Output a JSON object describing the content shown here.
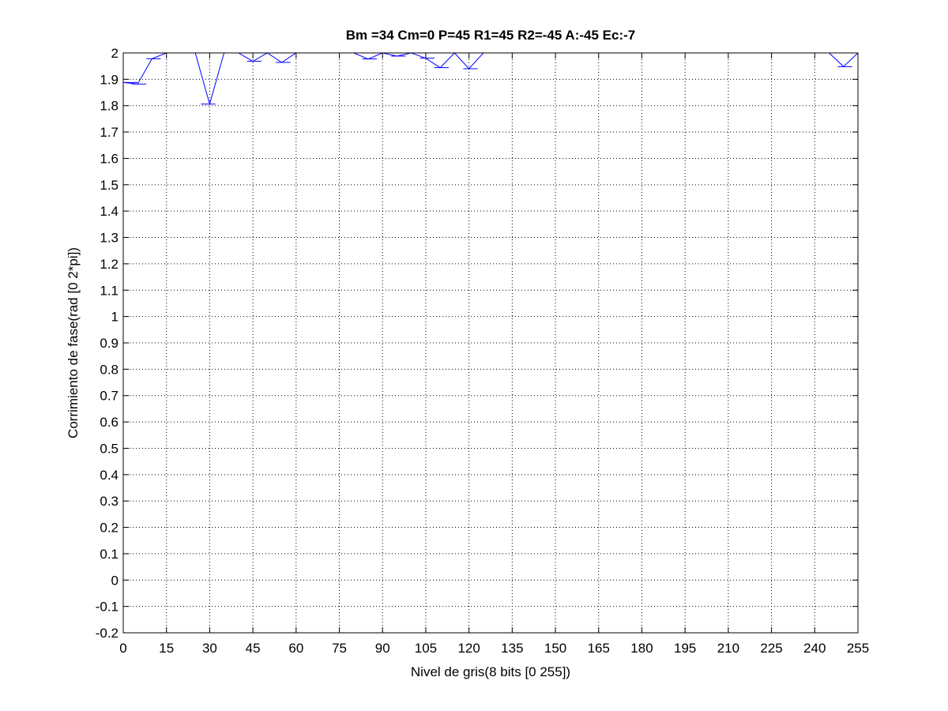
{
  "chart_data": {
    "type": "line",
    "title": "Bm =34  Cm=0  P=45  R1=45  R2=-45  A:-45  Ec:-7",
    "xlabel": "Nivel de gris(8 bits [0 255])",
    "ylabel": "Corrimiento de fase(rad [0 2*pi])",
    "xlim": [
      0,
      255
    ],
    "ylim": [
      -0.2,
      2
    ],
    "xticks": [
      0,
      15,
      30,
      45,
      60,
      75,
      90,
      105,
      120,
      135,
      150,
      165,
      180,
      195,
      210,
      225,
      240,
      255
    ],
    "yticks": [
      -0.2,
      -0.1,
      0,
      0.1,
      0.2,
      0.3,
      0.4,
      0.5,
      0.6,
      0.7,
      0.8,
      0.9,
      1,
      1.1,
      1.2,
      1.3,
      1.4,
      1.5,
      1.6,
      1.7,
      1.8,
      1.9,
      2
    ],
    "ytick_labels": [
      "-0.2",
      "-0.1",
      "0",
      "0.1",
      "0.2",
      "0.3",
      "0.4",
      "0.5",
      "0.6",
      "0.7",
      "0.8",
      "0.9",
      "1",
      "1.1",
      "1.2",
      "1.3",
      "1.4",
      "1.5",
      "1.6",
      "1.7",
      "1.8",
      "1.9",
      "2"
    ],
    "grid": true,
    "line_color": "#0000ff",
    "series": [
      {
        "x": [
          0,
          5,
          10,
          15,
          20,
          25,
          30,
          35,
          40,
          45,
          50,
          55,
          60,
          65,
          70,
          75,
          80,
          85,
          90,
          95,
          100,
          105,
          110,
          115,
          120,
          125,
          130,
          135,
          140,
          145,
          150,
          155,
          160,
          165,
          170,
          175,
          180,
          185,
          190,
          195,
          200,
          205,
          210,
          215,
          220,
          225,
          230,
          235,
          240,
          245,
          250,
          255
        ],
        "y": [
          1.888,
          1.882,
          1.978,
          2.0,
          2.0,
          2.0,
          1.806,
          2.0,
          2.0,
          1.968,
          2.0,
          1.964,
          2.0,
          2.0,
          2.0,
          2.0,
          2.0,
          1.977,
          2.0,
          1.988,
          2.0,
          1.98,
          1.944,
          2.0,
          1.94,
          2.0,
          2.0,
          2.0,
          2.0,
          2.0,
          2.0,
          2.0,
          2.0,
          2.0,
          2.0,
          2.0,
          2.0,
          2.0,
          2.0,
          2.0,
          2.0,
          2.0,
          2.0,
          2.0,
          2.0,
          2.0,
          2.0,
          2.0,
          2.0,
          2.0,
          1.948,
          2.0
        ]
      }
    ],
    "hlines": [
      {
        "y": 1.888,
        "x0": 0,
        "x1": 5
      },
      {
        "y": 1.882,
        "x0": 3,
        "x1": 8
      },
      {
        "y": 1.978,
        "x0": 8,
        "x1": 13
      },
      {
        "y": 1.806,
        "x0": 27,
        "x1": 32
      },
      {
        "y": 1.968,
        "x0": 43,
        "x1": 48
      },
      {
        "y": 1.964,
        "x0": 53,
        "x1": 58
      },
      {
        "y": 1.977,
        "x0": 83,
        "x1": 88
      },
      {
        "y": 1.988,
        "x0": 93,
        "x1": 98
      },
      {
        "y": 1.98,
        "x0": 103,
        "x1": 108
      },
      {
        "y": 1.944,
        "x0": 108,
        "x1": 113
      },
      {
        "y": 2.0,
        "x0": 113,
        "x1": 118
      },
      {
        "y": 1.94,
        "x0": 118,
        "x1": 123
      },
      {
        "y": 1.948,
        "x0": 248,
        "x1": 253
      }
    ]
  }
}
